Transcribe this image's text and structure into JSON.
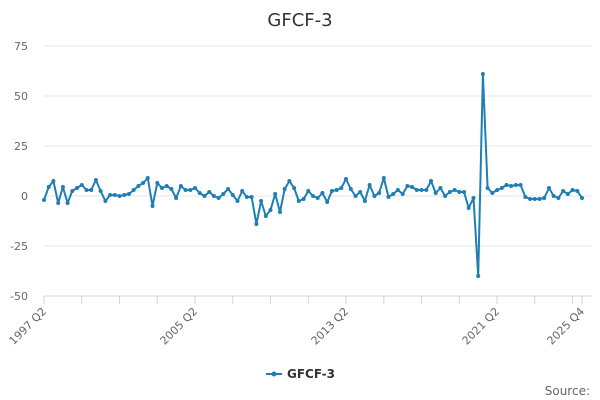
{
  "chart_data": {
    "type": "line",
    "title": "GFCF-3",
    "xlabel": "",
    "ylabel": "",
    "ylim": [
      -50,
      75
    ],
    "y_ticks": [
      75,
      50,
      25,
      0,
      -25,
      -50
    ],
    "x_tick_labels": [
      "1997 Q2",
      "2005 Q2",
      "2013 Q2",
      "2021 Q2",
      "2025 Q4"
    ],
    "grid": true,
    "legend_position": "bottom-center",
    "color": "#1f7fb4",
    "source_label": "Source:",
    "series": [
      {
        "name": "GFCF-3",
        "start": "1997 Q2",
        "values": [
          -2,
          4.5,
          7.5,
          -3.5,
          4.5,
          -3.5,
          2.5,
          4,
          5.5,
          3,
          3,
          8,
          2.5,
          -2.5,
          0.5,
          0.5,
          0,
          0.5,
          1,
          3,
          5,
          6.5,
          9,
          -5,
          6.5,
          4,
          5,
          3.5,
          -1,
          5,
          3,
          3,
          4,
          1.5,
          0,
          2,
          0,
          -1,
          1,
          3.5,
          0.5,
          -2.5,
          2.5,
          -0.5,
          -0.5,
          -14,
          -2.5,
          -10,
          -7,
          1,
          -8,
          3.5,
          7.5,
          4,
          -2.5,
          -1.5,
          2.5,
          0,
          -1,
          1.5,
          -3,
          2.5,
          3,
          4,
          8.5,
          3.5,
          0,
          2,
          -2.5,
          5.5,
          0,
          1.5,
          9,
          -0.5,
          1,
          3,
          1,
          5,
          4.5,
          3,
          3,
          3,
          7.5,
          1.5,
          4,
          0,
          2,
          3,
          2,
          2,
          -6,
          -1,
          -40,
          61,
          4,
          1.5,
          3,
          4,
          5.5,
          5,
          5.5,
          5.5,
          -0.5,
          -1.5,
          -1.5,
          -1.5,
          -1,
          4,
          0,
          -1,
          2.5,
          1,
          3,
          2.5,
          -1
        ]
      }
    ]
  }
}
